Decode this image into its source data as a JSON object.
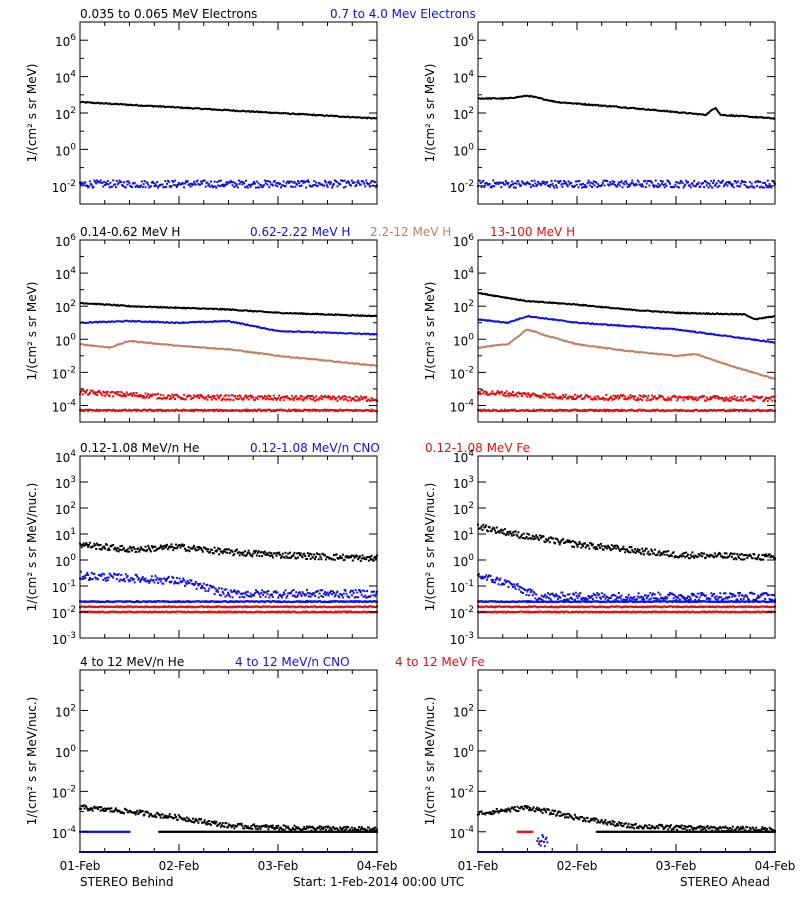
{
  "colors": {
    "black": "#000000",
    "blue": "#1010e0",
    "tan": "#c08060",
    "red": "#e01010"
  },
  "footer": {
    "left": "STEREO Behind",
    "center": "Start:  1-Feb-2014 00:00 UTC",
    "right": "STEREO Ahead"
  },
  "x_axis": {
    "range_days": [
      0,
      3
    ],
    "tick_labels": [
      "01-Feb",
      "02-Feb",
      "03-Feb",
      "04-Feb"
    ]
  },
  "chart_data": [
    {
      "type": "scatter",
      "panel": "row1-behind",
      "ylabel": "1/(cm² s sr MeV)",
      "yscale": "log",
      "ylim_exp": [
        -3,
        7
      ],
      "ytick_exps": [
        -2,
        0,
        2,
        4,
        6
      ],
      "legend": [
        {
          "label": "0.035 to 0.065 MeV Electrons",
          "color": "#000000"
        },
        {
          "label": "0.7 to 4.0 Mev Electrons",
          "color": "#1010e0"
        }
      ],
      "series": [
        {
          "color": "#000000",
          "style": "line",
          "noise": 0.03,
          "points": [
            [
              0,
              2.6
            ],
            [
              0.5,
              2.45
            ],
            [
              1,
              2.3
            ],
            [
              2,
              2.0
            ],
            [
              3,
              1.7
            ]
          ]
        },
        {
          "color": "#1010e0",
          "style": "scatter",
          "noise": 0.2,
          "points": [
            [
              0,
              -1.9
            ],
            [
              3,
              -1.9
            ]
          ]
        }
      ]
    },
    {
      "type": "scatter",
      "panel": "row1-ahead",
      "ylabel": "1/(cm² s sr MeV)",
      "yscale": "log",
      "ylim_exp": [
        -3,
        7
      ],
      "ytick_exps": [
        -2,
        0,
        2,
        4,
        6
      ],
      "legend": [],
      "series": [
        {
          "color": "#000000",
          "style": "line",
          "noise": 0.03,
          "points": [
            [
              0,
              2.8
            ],
            [
              0.3,
              2.8
            ],
            [
              0.5,
              2.95
            ],
            [
              0.8,
              2.6
            ],
            [
              1.5,
              2.3
            ],
            [
              2.3,
              1.9
            ],
            [
              2.4,
              2.3
            ],
            [
              2.45,
              1.9
            ],
            [
              3,
              1.7
            ]
          ]
        },
        {
          "color": "#1010e0",
          "style": "scatter",
          "noise": 0.2,
          "points": [
            [
              0,
              -1.9
            ],
            [
              3,
              -1.9
            ]
          ]
        }
      ]
    },
    {
      "type": "scatter",
      "panel": "row2-behind",
      "ylabel": "1/(cm² s sr MeV)",
      "yscale": "log",
      "ylim_exp": [
        -5,
        6
      ],
      "ytick_exps": [
        -4,
        -2,
        0,
        2,
        4,
        6
      ],
      "legend": [
        {
          "label": "0.14-0.62 MeV H",
          "color": "#000000"
        },
        {
          "label": "0.62-2.22 MeV H",
          "color": "#1010e0"
        },
        {
          "label": "2.2-12 MeV H",
          "color": "#c08060"
        },
        {
          "label": "13-100 MeV H",
          "color": "#e01010"
        }
      ],
      "series": [
        {
          "color": "#000000",
          "style": "line",
          "noise": 0.03,
          "points": [
            [
              0,
              2.2
            ],
            [
              0.5,
              2.0
            ],
            [
              1,
              1.9
            ],
            [
              1.5,
              1.8
            ],
            [
              2,
              1.6
            ],
            [
              3,
              1.4
            ]
          ]
        },
        {
          "color": "#1010e0",
          "style": "line",
          "noise": 0.03,
          "points": [
            [
              0,
              1.0
            ],
            [
              0.5,
              1.1
            ],
            [
              1,
              1.0
            ],
            [
              1.5,
              1.1
            ],
            [
              2,
              0.5
            ],
            [
              3,
              0.3
            ]
          ]
        },
        {
          "color": "#c08060",
          "style": "line",
          "noise": 0.03,
          "points": [
            [
              0,
              -0.3
            ],
            [
              0.3,
              -0.5
            ],
            [
              0.5,
              -0.1
            ],
            [
              1,
              -0.4
            ],
            [
              1.5,
              -0.6
            ],
            [
              2,
              -1.0
            ],
            [
              3,
              -1.6
            ]
          ]
        },
        {
          "color": "#e01010",
          "style": "scatter",
          "noise": 0.15,
          "points": [
            [
              0,
              -3.2
            ],
            [
              1,
              -3.5
            ],
            [
              3,
              -3.6
            ]
          ]
        },
        {
          "color": "#e01010",
          "style": "scatter",
          "noise": 0.05,
          "points": [
            [
              0,
              -4.3
            ],
            [
              3,
              -4.3
            ]
          ]
        }
      ]
    },
    {
      "type": "scatter",
      "panel": "row2-ahead",
      "ylabel": "1/(cm² s sr MeV)",
      "yscale": "log",
      "ylim_exp": [
        -5,
        6
      ],
      "ytick_exps": [
        -4,
        -2,
        0,
        2,
        4,
        6
      ],
      "legend": [],
      "series": [
        {
          "color": "#000000",
          "style": "line",
          "noise": 0.03,
          "points": [
            [
              0,
              2.8
            ],
            [
              0.5,
              2.3
            ],
            [
              1,
              2.1
            ],
            [
              1.5,
              1.8
            ],
            [
              2,
              1.6
            ],
            [
              2.7,
              1.5
            ],
            [
              2.8,
              1.2
            ],
            [
              3,
              1.4
            ]
          ]
        },
        {
          "color": "#1010e0",
          "style": "line",
          "noise": 0.03,
          "points": [
            [
              0,
              1.2
            ],
            [
              0.3,
              1.0
            ],
            [
              0.5,
              1.4
            ],
            [
              1,
              1.0
            ],
            [
              1.5,
              0.8
            ],
            [
              2,
              0.6
            ],
            [
              2.5,
              0.2
            ],
            [
              3,
              -0.2
            ]
          ]
        },
        {
          "color": "#c08060",
          "style": "line",
          "noise": 0.03,
          "points": [
            [
              0,
              -0.5
            ],
            [
              0.3,
              -0.3
            ],
            [
              0.5,
              0.6
            ],
            [
              0.7,
              0.2
            ],
            [
              1,
              -0.3
            ],
            [
              1.5,
              -0.7
            ],
            [
              2,
              -1.0
            ],
            [
              2.2,
              -0.9
            ],
            [
              2.5,
              -1.5
            ],
            [
              3,
              -2.4
            ]
          ]
        },
        {
          "color": "#e01010",
          "style": "scatter",
          "noise": 0.15,
          "points": [
            [
              0,
              -3.2
            ],
            [
              1,
              -3.5
            ],
            [
              3,
              -3.6
            ]
          ]
        },
        {
          "color": "#e01010",
          "style": "scatter",
          "noise": 0.05,
          "points": [
            [
              0,
              -4.3
            ],
            [
              3,
              -4.3
            ]
          ]
        }
      ]
    },
    {
      "type": "scatter",
      "panel": "row3-behind",
      "ylabel": "1/(cm² s sr MeV/nuc.)",
      "yscale": "log",
      "ylim_exp": [
        -3,
        4
      ],
      "ytick_exps": [
        -3,
        -2,
        -1,
        0,
        1,
        2,
        3,
        4
      ],
      "legend": [
        {
          "label": "0.12-1.08 MeV/n He",
          "color": "#000000"
        },
        {
          "label": "0.12-1.08 MeV/n CNO",
          "color": "#1010e0"
        },
        {
          "label": "0.12-1.08 MeV Fe",
          "color": "#e01010"
        }
      ],
      "series": [
        {
          "color": "#000000",
          "style": "scatter",
          "noise": 0.12,
          "points": [
            [
              0,
              0.6
            ],
            [
              0.5,
              0.4
            ],
            [
              1,
              0.5
            ],
            [
              1.5,
              0.3
            ],
            [
              2,
              0.2
            ],
            [
              3,
              0.05
            ]
          ]
        },
        {
          "color": "#1010e0",
          "style": "scatter",
          "noise": 0.15,
          "points": [
            [
              0,
              -0.6
            ],
            [
              1,
              -0.8
            ],
            [
              1.5,
              -1.3
            ],
            [
              3,
              -1.3
            ]
          ]
        },
        {
          "color": "#1010e0",
          "style": "scatter",
          "noise": 0.02,
          "points": [
            [
              0,
              -1.6
            ],
            [
              3,
              -1.6
            ]
          ]
        },
        {
          "color": "#e01010",
          "style": "scatter",
          "noise": 0.02,
          "points": [
            [
              0,
              -1.8
            ],
            [
              3,
              -1.8
            ]
          ]
        },
        {
          "color": "#e01010",
          "style": "scatter",
          "noise": 0.02,
          "points": [
            [
              0,
              -2.0
            ],
            [
              3,
              -2.0
            ]
          ]
        }
      ]
    },
    {
      "type": "scatter",
      "panel": "row3-ahead",
      "ylabel": "1/(cm² s sr MeV/nuc.)",
      "yscale": "log",
      "ylim_exp": [
        -3,
        4
      ],
      "ytick_exps": [
        -3,
        -2,
        -1,
        0,
        1,
        2,
        3,
        4
      ],
      "legend": [],
      "series": [
        {
          "color": "#000000",
          "style": "scatter",
          "noise": 0.12,
          "points": [
            [
              0,
              1.3
            ],
            [
              0.5,
              0.9
            ],
            [
              1,
              0.6
            ],
            [
              1.5,
              0.4
            ],
            [
              2,
              0.2
            ],
            [
              3,
              0.1
            ]
          ]
        },
        {
          "color": "#1010e0",
          "style": "scatter",
          "noise": 0.15,
          "points": [
            [
              0,
              -0.6
            ],
            [
              0.3,
              -0.9
            ],
            [
              0.6,
              -1.4
            ],
            [
              3,
              -1.4
            ]
          ]
        },
        {
          "color": "#1010e0",
          "style": "scatter",
          "noise": 0.02,
          "points": [
            [
              0,
              -1.6
            ],
            [
              3,
              -1.6
            ]
          ]
        },
        {
          "color": "#e01010",
          "style": "scatter",
          "noise": 0.02,
          "points": [
            [
              0,
              -1.8
            ],
            [
              3,
              -1.8
            ]
          ]
        },
        {
          "color": "#e01010",
          "style": "scatter",
          "noise": 0.02,
          "points": [
            [
              0,
              -2.0
            ],
            [
              3,
              -2.0
            ]
          ]
        }
      ]
    },
    {
      "type": "scatter",
      "panel": "row4-behind",
      "ylabel": "1/(cm² s sr MeV/nuc.)",
      "yscale": "log",
      "ylim_exp": [
        -5,
        4
      ],
      "ytick_exps": [
        -4,
        -2,
        0,
        2
      ],
      "legend": [
        {
          "label": "4 to 12 MeV/n He",
          "color": "#000000"
        },
        {
          "label": "4 to 12 MeV/n CNO",
          "color": "#1010e0"
        },
        {
          "label": "4 to 12 MeV Fe",
          "color": "#e01010"
        }
      ],
      "series": [
        {
          "color": "#000000",
          "style": "scatter",
          "noise": 0.12,
          "points": [
            [
              0,
              -2.8
            ],
            [
              0.5,
              -3.0
            ],
            [
              1,
              -3.3
            ],
            [
              1.5,
              -3.7
            ],
            [
              2,
              -3.8
            ],
            [
              3,
              -3.9
            ]
          ]
        },
        {
          "color": "#000000",
          "style": "scatter",
          "noise": 0.0,
          "points": [
            [
              0.8,
              -4.0
            ],
            [
              3,
              -4.0
            ]
          ]
        },
        {
          "color": "#1010e0",
          "style": "scatter",
          "noise": 0.0,
          "points": [
            [
              0,
              -4.0
            ],
            [
              0.5,
              -4.0
            ]
          ]
        },
        {
          "color": "#1010e0",
          "style": "scatter",
          "noise": 0.0,
          "points": [
            [
              0,
              -5.0
            ],
            [
              3,
              -5.0
            ]
          ]
        }
      ]
    },
    {
      "type": "scatter",
      "panel": "row4-ahead",
      "ylabel": "1/(cm² s sr MeV/nuc.)",
      "yscale": "log",
      "ylim_exp": [
        -5,
        4
      ],
      "ytick_exps": [
        -4,
        -2,
        0,
        2
      ],
      "legend": [],
      "series": [
        {
          "color": "#000000",
          "style": "scatter",
          "noise": 0.12,
          "points": [
            [
              0,
              -3.1
            ],
            [
              0.5,
              -2.8
            ],
            [
              1,
              -3.3
            ],
            [
              1.5,
              -3.7
            ],
            [
              2,
              -3.8
            ],
            [
              3,
              -3.9
            ]
          ]
        },
        {
          "color": "#000000",
          "style": "scatter",
          "noise": 0.0,
          "points": [
            [
              1.2,
              -4.0
            ],
            [
              3,
              -4.0
            ]
          ]
        },
        {
          "color": "#1010e0",
          "style": "scatter",
          "noise": 0.3,
          "points": [
            [
              0.6,
              -4.3
            ],
            [
              0.7,
              -4.6
            ]
          ]
        },
        {
          "color": "#e01010",
          "style": "scatter",
          "noise": 0.0,
          "points": [
            [
              0.4,
              -4.0
            ],
            [
              0.55,
              -4.0
            ]
          ]
        },
        {
          "color": "#1010e0",
          "style": "scatter",
          "noise": 0.0,
          "points": [
            [
              0,
              -5.0
            ],
            [
              3,
              -5.0
            ]
          ]
        }
      ]
    }
  ]
}
